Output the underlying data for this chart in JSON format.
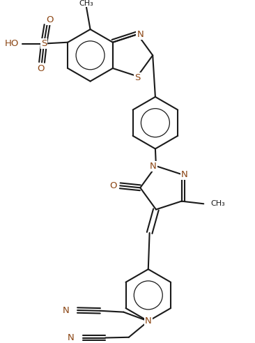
{
  "bg_color": "#ffffff",
  "line_color": "#1a1a1a",
  "hetero_color": "#8B4513",
  "figsize": [
    3.66,
    4.92
  ],
  "dpi": 100,
  "bond_width": 1.5,
  "font_size": 9.5,
  "font_size_small": 8.0,
  "bl": 0.38,
  "xlim": [
    0,
    3.66
  ],
  "ylim": [
    0,
    4.92
  ]
}
